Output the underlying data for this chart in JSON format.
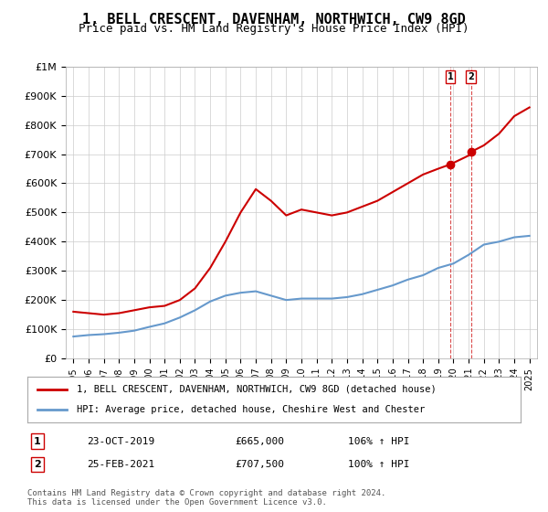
{
  "title": "1, BELL CRESCENT, DAVENHAM, NORTHWICH, CW9 8GD",
  "subtitle": "Price paid vs. HM Land Registry's House Price Index (HPI)",
  "legend_line1": "1, BELL CRESCENT, DAVENHAM, NORTHWICH, CW9 8GD (detached house)",
  "legend_line2": "HPI: Average price, detached house, Cheshire West and Chester",
  "transactions": [
    {
      "num": 1,
      "date": "23-OCT-2019",
      "price": "£665,000",
      "pct": "106% ↑ HPI",
      "year": 2019.8
    },
    {
      "num": 2,
      "date": "25-FEB-2021",
      "price": "£707,500",
      "pct": "100% ↑ HPI",
      "year": 2021.15
    }
  ],
  "transaction_prices": [
    665000,
    707500
  ],
  "footer": "Contains HM Land Registry data © Crown copyright and database right 2024.\nThis data is licensed under the Open Government Licence v3.0.",
  "red_color": "#cc0000",
  "blue_color": "#6699cc",
  "ylim": [
    0,
    1000000
  ],
  "xlim_start": 1995,
  "xlim_end": 2025.5,
  "hpi_years": [
    1995,
    1996,
    1997,
    1998,
    1999,
    2000,
    2001,
    2002,
    2003,
    2004,
    2005,
    2006,
    2007,
    2008,
    2009,
    2010,
    2011,
    2012,
    2013,
    2014,
    2015,
    2016,
    2017,
    2018,
    2019,
    2020,
    2021,
    2022,
    2023,
    2024,
    2025
  ],
  "hpi_values": [
    75000,
    80000,
    83000,
    88000,
    95000,
    108000,
    120000,
    140000,
    165000,
    195000,
    215000,
    225000,
    230000,
    215000,
    200000,
    205000,
    205000,
    205000,
    210000,
    220000,
    235000,
    250000,
    270000,
    285000,
    310000,
    325000,
    355000,
    390000,
    400000,
    415000,
    420000
  ],
  "red_years": [
    1995,
    1996,
    1997,
    1998,
    1999,
    2000,
    2001,
    2002,
    2003,
    2004,
    2005,
    2006,
    2007,
    2008,
    2009,
    2010,
    2011,
    2012,
    2013,
    2014,
    2015,
    2016,
    2017,
    2018,
    2019,
    2019.8,
    2020,
    2021,
    2021.15,
    2022,
    2023,
    2024,
    2025
  ],
  "red_values": [
    160000,
    155000,
    150000,
    155000,
    165000,
    175000,
    180000,
    200000,
    240000,
    310000,
    400000,
    500000,
    580000,
    540000,
    490000,
    510000,
    500000,
    490000,
    500000,
    520000,
    540000,
    570000,
    600000,
    630000,
    650000,
    665000,
    670000,
    695000,
    707500,
    730000,
    770000,
    830000,
    860000
  ],
  "bg_color": "#ffffff",
  "grid_color": "#cccccc"
}
